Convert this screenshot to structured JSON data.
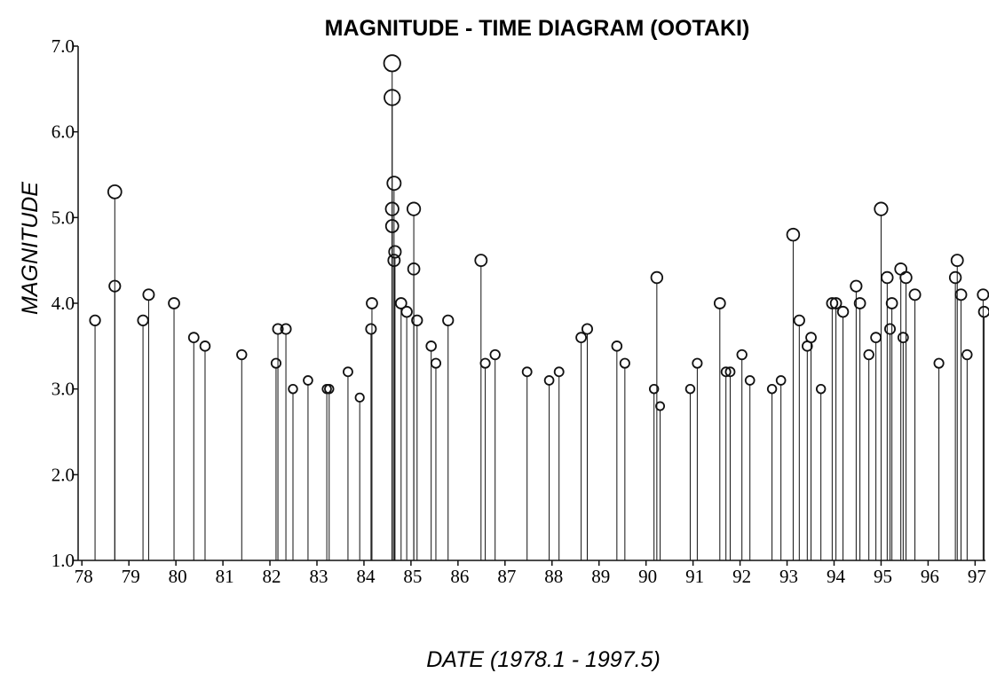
{
  "chart_data": {
    "type": "stem",
    "title": "MAGNITUDE - TIME DIAGRAM (OOTAKI)",
    "x_label": "DATE  (1978.1 - 1997.5)",
    "y_label": "MAGNITUDE",
    "color": "#111111",
    "xlim": [
      1977.92,
      1997.22
    ],
    "ylim": [
      1.0,
      7.0
    ],
    "xticks": [
      {
        "value": 1978,
        "label": "78"
      },
      {
        "value": 1979,
        "label": "79"
      },
      {
        "value": 1980,
        "label": "80"
      },
      {
        "value": 1981,
        "label": "81"
      },
      {
        "value": 1982,
        "label": "82"
      },
      {
        "value": 1983,
        "label": "83"
      },
      {
        "value": 1984,
        "label": "84"
      },
      {
        "value": 1985,
        "label": "85"
      },
      {
        "value": 1986,
        "label": "86"
      },
      {
        "value": 1987,
        "label": "87"
      },
      {
        "value": 1988,
        "label": "88"
      },
      {
        "value": 1989,
        "label": "89"
      },
      {
        "value": 1990,
        "label": "90"
      },
      {
        "value": 1991,
        "label": "91"
      },
      {
        "value": 1992,
        "label": "92"
      },
      {
        "value": 1993,
        "label": "93"
      },
      {
        "value": 1994,
        "label": "94"
      },
      {
        "value": 1995,
        "label": "95"
      },
      {
        "value": 1996,
        "label": "96"
      },
      {
        "value": 1997,
        "label": "97"
      }
    ],
    "yticks": [
      {
        "value": 1,
        "label": "1.0"
      },
      {
        "value": 2,
        "label": "2.0"
      },
      {
        "value": 3,
        "label": "3.0"
      },
      {
        "value": 4,
        "label": "4.0"
      },
      {
        "value": 5,
        "label": "5.0"
      },
      {
        "value": 6,
        "label": "6.0"
      },
      {
        "value": 7,
        "label": "7.0"
      }
    ],
    "x": [
      1978.28,
      1978.7,
      1978.7,
      1979.3,
      1979.42,
      1979.96,
      1980.38,
      1980.62,
      1981.4,
      1982.13,
      1982.17,
      1982.34,
      1982.49,
      1982.81,
      1983.21,
      1983.26,
      1983.66,
      1983.91,
      1984.15,
      1984.17,
      1984.6,
      1984.6,
      1984.64,
      1984.6,
      1984.6,
      1984.66,
      1984.64,
      1984.79,
      1984.91,
      1985.06,
      1985.06,
      1985.13,
      1985.43,
      1985.53,
      1985.79,
      1986.49,
      1986.58,
      1986.79,
      1987.47,
      1987.94,
      1988.15,
      1988.62,
      1988.75,
      1989.38,
      1989.55,
      1990.17,
      1990.23,
      1990.3,
      1990.94,
      1991.09,
      1991.57,
      1991.7,
      1991.79,
      1992.04,
      1992.21,
      1992.68,
      1992.87,
      1993.13,
      1993.26,
      1993.43,
      1993.51,
      1993.72,
      1993.96,
      1994.04,
      1994.19,
      1994.47,
      1994.55,
      1994.74,
      1994.89,
      1995.0,
      1995.13,
      1995.19,
      1995.23,
      1995.42,
      1995.47,
      1995.53,
      1995.72,
      1996.23,
      1996.58,
      1996.62,
      1996.7,
      1996.83,
      1997.17,
      1997.19
    ],
    "values": [
      3.8,
      5.3,
      4.2,
      3.8,
      4.1,
      4.0,
      3.6,
      3.5,
      3.4,
      3.3,
      3.7,
      3.7,
      3.0,
      3.1,
      3.0,
      3.0,
      3.2,
      2.9,
      3.7,
      4.0,
      6.8,
      6.4,
      5.4,
      5.1,
      4.9,
      4.6,
      4.5,
      4.0,
      3.9,
      5.1,
      4.4,
      3.8,
      3.5,
      3.3,
      3.8,
      4.5,
      3.3,
      3.4,
      3.2,
      3.1,
      3.2,
      3.6,
      3.7,
      3.5,
      3.3,
      3.0,
      4.3,
      2.8,
      3.0,
      3.3,
      4.0,
      3.2,
      3.2,
      3.4,
      3.1,
      3.0,
      3.1,
      4.8,
      3.8,
      3.5,
      3.6,
      3.0,
      4.0,
      4.0,
      3.9,
      4.2,
      4.0,
      3.4,
      3.6,
      5.1,
      4.3,
      3.7,
      4.0,
      4.4,
      3.6,
      4.3,
      4.1,
      3.3,
      4.3,
      4.5,
      4.1,
      3.4,
      4.1,
      3.9
    ]
  }
}
